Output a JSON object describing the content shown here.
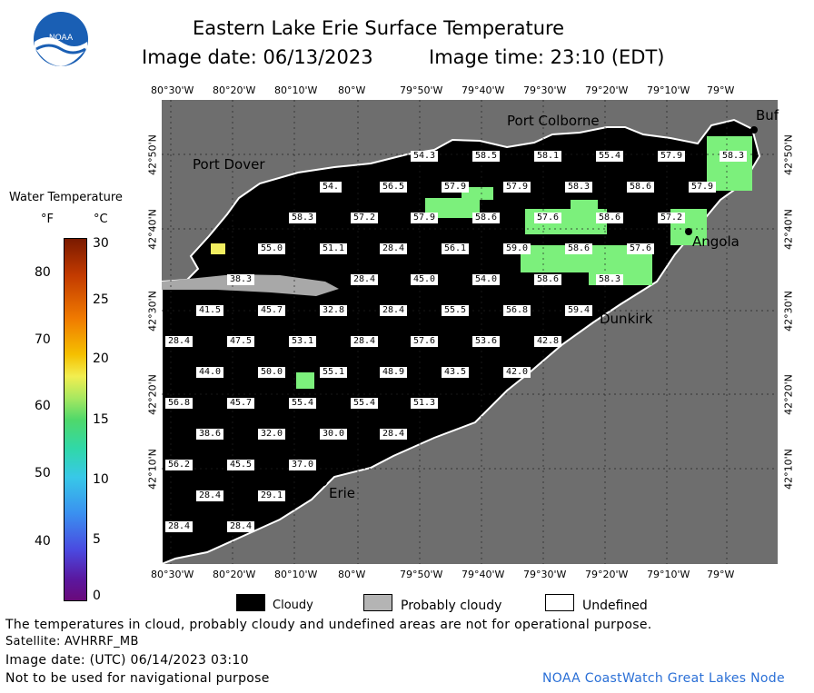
{
  "header": {
    "title": "Eastern Lake Erie Surface Temperature",
    "image_date": "Image date: 06/13/2023",
    "image_time": "Image time: 23:10 (EDT)",
    "logo_text": "NOAA"
  },
  "colorbar": {
    "title": "Water Temperature",
    "unit_f": "°F",
    "unit_c": "°C",
    "f_ticks": [
      "80",
      "70",
      "60",
      "50",
      "40"
    ],
    "c_ticks": [
      "30",
      "25",
      "20",
      "15",
      "10",
      "5",
      "0"
    ]
  },
  "axes": {
    "lon_labels": [
      "80°30'W",
      "80°20'W",
      "80°10'W",
      "80°W",
      "79°50'W",
      "79°40'W",
      "79°30'W",
      "79°20'W",
      "79°10'W",
      "79°W"
    ],
    "lat_labels": [
      "42°50'N",
      "42°40'N",
      "42°30'N",
      "42°20'N",
      "42°10'N"
    ]
  },
  "places": {
    "port_colborne": "Port Colborne",
    "port_dover": "Port Dover",
    "angola": "Angola",
    "dunkirk": "Dunkirk",
    "erie": "Erie",
    "buffalo": "Buf"
  },
  "temperatures": [
    "54.3",
    "58.5",
    "58.1",
    "55.4",
    "57.9",
    "58.3",
    "54.",
    "56.5",
    "57.9",
    "57.9",
    "58.3",
    "58.6",
    "57.9",
    "58.3",
    "57.2",
    "57.9",
    "58.6",
    "57.6",
    "58.6",
    "57.2",
    "55.0",
    "51.1",
    "28.4",
    "56.1",
    "59.0",
    "58.6",
    "57.6",
    "38.3",
    "28.4",
    "45.0",
    "54.0",
    "58.6",
    "58.3",
    "41.5",
    "45.7",
    "32.8",
    "28.4",
    "55.5",
    "56.8",
    "59.4",
    "28.4",
    "47.5",
    "53.1",
    "28.4",
    "57.6",
    "53.6",
    "42.8",
    "44.0",
    "50.0",
    "55.1",
    "48.9",
    "43.5",
    "42.0",
    "56.8",
    "45.7",
    "55.4",
    "55.4",
    "51.3",
    "38.6",
    "32.0",
    "30.0",
    "28.4",
    "56.2",
    "45.5",
    "37.0",
    "28.4",
    "29.1",
    "28.4",
    "28.4"
  ],
  "legend": {
    "cloudy": "Cloudy",
    "probably_cloudy": "Probably cloudy",
    "undefined": "Undefined"
  },
  "footer": {
    "disclaimer": "The temperatures in cloud, probably cloudy and undefined areas are not for operational purpose.",
    "satellite": "Satellite: AVHRRF_MB",
    "utc_date": "Image date: (UTC) 06/14/2023  03:10",
    "nav_warning": "Not to be used for navigational purpose",
    "credit": "NOAA CoastWatch Great Lakes Node"
  },
  "colors": {
    "land": "#6e6e6e",
    "cloud": "#000000",
    "warm_water": "#7cf07c",
    "credit_text": "#2a6fd6"
  }
}
